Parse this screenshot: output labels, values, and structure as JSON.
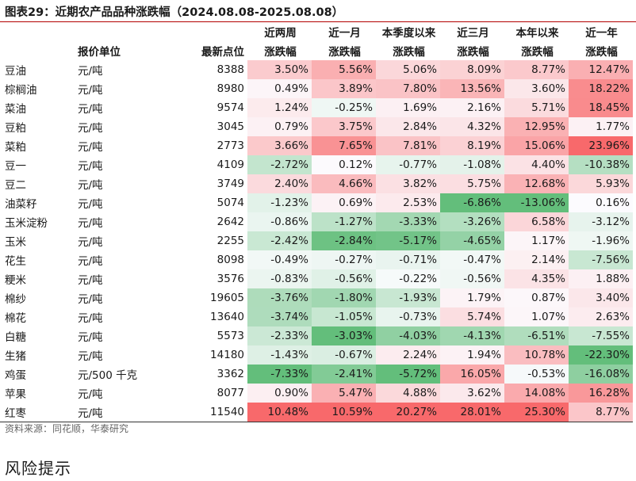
{
  "title": "图表29：近期农产品品种涨跌幅（2024.08.08-2025.08.08）",
  "header_row1": [
    "",
    "",
    "",
    "近两周",
    "近一月",
    "本季度以来",
    "近三月",
    "本年以来",
    "近一年"
  ],
  "header_row2": [
    "",
    "报价单位",
    "最新点位",
    "涨跌幅",
    "涨跌幅",
    "涨跌幅",
    "涨跌幅",
    "涨跌幅",
    "涨跌幅"
  ],
  "rows": [
    {
      "name": "豆油",
      "unit": "元/吨",
      "price": "8388",
      "vals": [
        "3.50%",
        "5.56%",
        "5.06%",
        "8.09%",
        "8.77%",
        "12.47%"
      ]
    },
    {
      "name": "棕榈油",
      "unit": "元/吨",
      "price": "8980",
      "vals": [
        "0.49%",
        "3.89%",
        "7.80%",
        "13.56%",
        "3.60%",
        "18.22%"
      ]
    },
    {
      "name": "菜油",
      "unit": "元/吨",
      "price": "9574",
      "vals": [
        "1.24%",
        "-0.25%",
        "1.69%",
        "2.16%",
        "5.71%",
        "18.45%"
      ]
    },
    {
      "name": "豆粕",
      "unit": "元/吨",
      "price": "3045",
      "vals": [
        "0.79%",
        "3.75%",
        "2.84%",
        "4.32%",
        "12.95%",
        "1.77%"
      ]
    },
    {
      "name": "菜粕",
      "unit": "元/吨",
      "price": "2773",
      "vals": [
        "3.66%",
        "7.65%",
        "7.81%",
        "8.19%",
        "15.06%",
        "23.96%"
      ]
    },
    {
      "name": "豆一",
      "unit": "元/吨",
      "price": "4109",
      "vals": [
        "-2.72%",
        "0.12%",
        "-0.77%",
        "-1.08%",
        "4.40%",
        "-10.38%"
      ]
    },
    {
      "name": "豆二",
      "unit": "元/吨",
      "price": "3749",
      "vals": [
        "2.40%",
        "4.66%",
        "3.82%",
        "5.75%",
        "12.68%",
        "5.93%"
      ]
    },
    {
      "name": "油菜籽",
      "unit": "元/吨",
      "price": "5074",
      "vals": [
        "-1.23%",
        "0.69%",
        "2.53%",
        "-6.86%",
        "-13.06%",
        "0.16%"
      ]
    },
    {
      "name": "玉米淀粉",
      "unit": "元/吨",
      "price": "2642",
      "vals": [
        "-0.86%",
        "-1.27%",
        "-3.33%",
        "-3.26%",
        "6.58%",
        "-3.12%"
      ]
    },
    {
      "name": "玉米",
      "unit": "元/吨",
      "price": "2255",
      "vals": [
        "-2.42%",
        "-2.84%",
        "-5.17%",
        "-4.65%",
        "1.17%",
        "-1.96%"
      ]
    },
    {
      "name": "花生",
      "unit": "元/吨",
      "price": "8098",
      "vals": [
        "-0.49%",
        "-0.27%",
        "-0.71%",
        "-0.47%",
        "2.14%",
        "-7.56%"
      ]
    },
    {
      "name": "粳米",
      "unit": "元/吨",
      "price": "3576",
      "vals": [
        "-0.83%",
        "-0.56%",
        "-0.22%",
        "-0.56%",
        "4.35%",
        "1.88%"
      ]
    },
    {
      "name": "棉纱",
      "unit": "元/吨",
      "price": "19605",
      "vals": [
        "-3.76%",
        "-1.80%",
        "-1.93%",
        "1.79%",
        "0.87%",
        "3.40%"
      ]
    },
    {
      "name": "棉花",
      "unit": "元/吨",
      "price": "13640",
      "vals": [
        "-3.74%",
        "-1.05%",
        "-0.73%",
        "5.74%",
        "1.07%",
        "2.63%"
      ]
    },
    {
      "name": "白糖",
      "unit": "元/吨",
      "price": "5573",
      "vals": [
        "-2.33%",
        "-3.03%",
        "-4.03%",
        "-4.13%",
        "-6.51%",
        "-7.55%"
      ]
    },
    {
      "name": "生猪",
      "unit": "元/吨",
      "price": "14180",
      "vals": [
        "-1.43%",
        "-0.67%",
        "2.24%",
        "1.94%",
        "10.78%",
        "-22.30%"
      ]
    },
    {
      "name": "鸡蛋",
      "unit": "元/500 千克",
      "price": "3362",
      "vals": [
        "-7.33%",
        "-2.41%",
        "-5.72%",
        "16.05%",
        "-0.53%",
        "-16.08%"
      ]
    },
    {
      "name": "苹果",
      "unit": "元/吨",
      "price": "8077",
      "vals": [
        "0.90%",
        "5.47%",
        "4.88%",
        "3.62%",
        "14.08%",
        "16.28%"
      ]
    },
    {
      "name": "红枣",
      "unit": "元/吨",
      "price": "11540",
      "vals": [
        "10.48%",
        "10.59%",
        "20.27%",
        "28.01%",
        "25.30%",
        "8.77%"
      ]
    }
  ],
  "source": "资料来源：同花顺，华泰研究",
  "section_title": "风险提示",
  "colors": {
    "rule": "#b30000",
    "pos_max": "#f8696b",
    "neg_max": "#63be7b",
    "neutral": "#fcfcff"
  }
}
